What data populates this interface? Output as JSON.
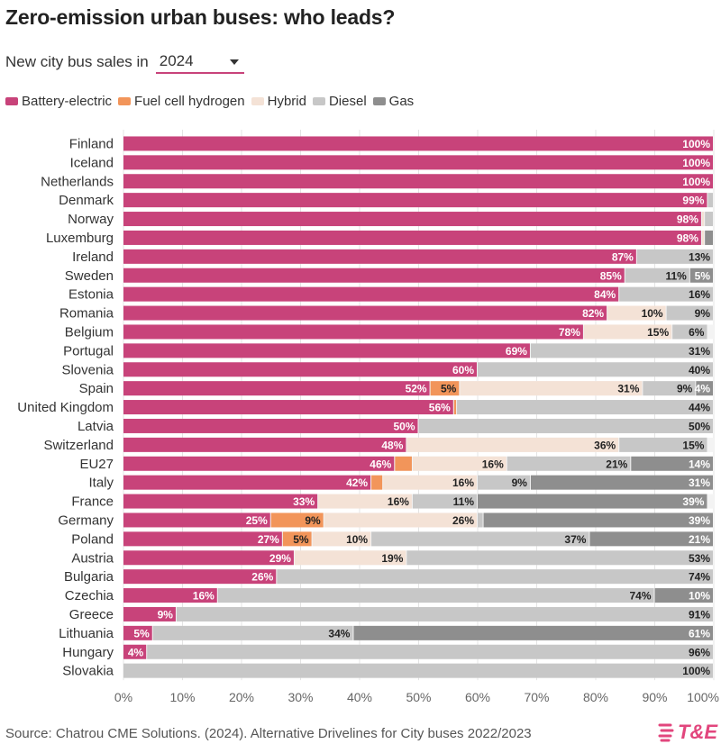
{
  "title": "Zero-emission urban buses: who leads?",
  "filter": {
    "label": "New city bus sales in",
    "selected": "2024"
  },
  "legend": [
    {
      "name": "Battery-electric",
      "color": "#c8437a"
    },
    {
      "name": "Fuel cell hydrogen",
      "color": "#f2955a"
    },
    {
      "name": "Hybrid",
      "color": "#f4e2d6"
    },
    {
      "name": "Diesel",
      "color": "#c7c7c7"
    },
    {
      "name": "Gas",
      "color": "#8e8e8e"
    }
  ],
  "source": "Source: Chatrou CME Solutions. (2024). Alternative Drivelines for City buses 2022/2023",
  "logo": {
    "text": "T&E",
    "icon": "transport-environment-logo"
  },
  "chart_data": {
    "type": "bar",
    "orientation": "horizontal",
    "stacked": true,
    "percent": true,
    "xlim": [
      0,
      100
    ],
    "xticks": [
      "0%",
      "10%",
      "20%",
      "30%",
      "40%",
      "50%",
      "60%",
      "70%",
      "80%",
      "90%",
      "100%"
    ],
    "grid": true,
    "legend_position": "top-left",
    "categories": [
      "Finland",
      "Iceland",
      "Netherlands",
      "Denmark",
      "Norway",
      "Luxemburg",
      "Ireland",
      "Sweden",
      "Estonia",
      "Romania",
      "Belgium",
      "Portugal",
      "Slovenia",
      "Spain",
      "United Kingdom",
      "Latvia",
      "Switzerland",
      "EU27",
      "Italy",
      "France",
      "Germany",
      "Poland",
      "Austria",
      "Bulgaria",
      "Czechia",
      "Greece",
      "Lithuania",
      "Hungary",
      "Slovakia"
    ],
    "series": [
      {
        "name": "Battery-electric",
        "values": [
          100,
          100,
          100,
          99,
          98,
          98,
          87,
          85,
          84,
          82,
          78,
          69,
          60,
          52,
          56,
          50,
          48,
          46,
          42,
          33,
          25,
          27,
          29,
          26,
          16,
          9,
          5,
          4,
          0
        ]
      },
      {
        "name": "Fuel cell hydrogen",
        "values": [
          0,
          0,
          0,
          0,
          0,
          0,
          0,
          0,
          0,
          0,
          0,
          0,
          0,
          5,
          0.5,
          0,
          0,
          3,
          2,
          0,
          9,
          5,
          0,
          0,
          0,
          0,
          0,
          0,
          0
        ]
      },
      {
        "name": "Hybrid",
        "values": [
          0,
          0,
          0,
          0,
          0.5,
          0.5,
          0,
          0,
          0,
          10,
          15,
          0,
          0,
          31,
          0,
          0,
          36,
          16,
          16,
          16,
          26,
          10,
          19,
          0,
          0,
          0,
          0,
          0,
          0
        ]
      },
      {
        "name": "Diesel",
        "values": [
          0,
          0,
          0,
          1,
          1.5,
          0,
          13,
          11,
          16,
          9,
          6,
          31,
          40,
          9,
          44,
          50,
          15,
          21,
          9,
          11,
          1,
          37,
          53,
          74,
          74,
          91,
          34,
          96,
          100
        ]
      },
      {
        "name": "Gas",
        "values": [
          0,
          0,
          0,
          0,
          0,
          1.5,
          0,
          5,
          0,
          0,
          0,
          0,
          0,
          4,
          0,
          0,
          0,
          14,
          31,
          39,
          39,
          21,
          0,
          0,
          10,
          0,
          61,
          0,
          0
        ]
      }
    ]
  }
}
